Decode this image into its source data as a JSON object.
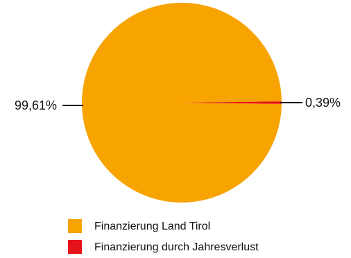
{
  "chart_data": {
    "type": "pie",
    "title": "",
    "categories": [
      "Finanzierung Land Tirol",
      "Finanzierung durch Jahresverlust"
    ],
    "values": [
      99.61,
      0.39
    ],
    "value_labels": [
      "99,61%",
      "0,39%"
    ],
    "colors": [
      "#F7A300",
      "#E6141A"
    ],
    "legend": {
      "position": "bottom",
      "entries": [
        {
          "label": "Finanzierung Land Tirol",
          "color": "#F7A300"
        },
        {
          "label": "Finanzierung durch Jahresverlust",
          "color": "#E6141A"
        }
      ]
    }
  }
}
